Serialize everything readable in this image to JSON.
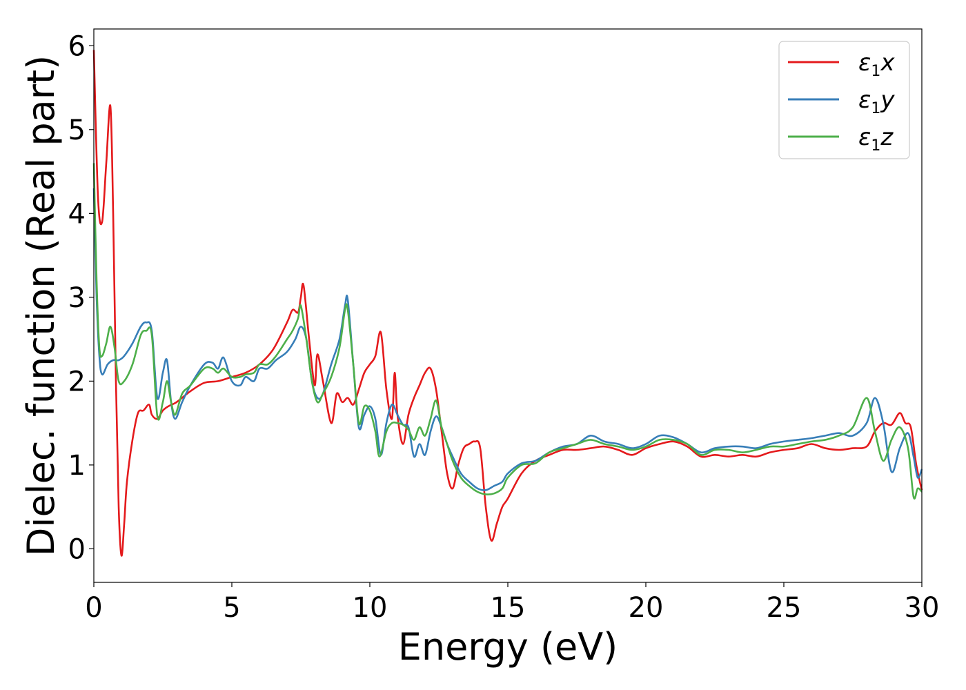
{
  "chart_data": {
    "type": "line",
    "xlabel": "Energy (eV)",
    "ylabel": "Dielec. function (Real part)",
    "xlim": [
      0,
      30
    ],
    "ylim": [
      -0.4,
      6.2
    ],
    "xticks": [
      0,
      5,
      10,
      15,
      20,
      25,
      30
    ],
    "yticks": [
      0,
      1,
      2,
      3,
      4,
      5,
      6
    ],
    "grid": false,
    "legend_position": "top-right",
    "series": [
      {
        "name": "x",
        "legend_symbol": "ε",
        "legend_subscript": "1",
        "color": "#e41a1c",
        "x": [
          0,
          0.15,
          0.3,
          0.45,
          0.6,
          0.7,
          0.8,
          0.9,
          1.0,
          1.1,
          1.2,
          1.4,
          1.6,
          1.8,
          2.0,
          2.1,
          2.3,
          2.5,
          2.7,
          3.0,
          3.5,
          4.0,
          4.5,
          5.0,
          5.5,
          6.0,
          6.5,
          7.0,
          7.2,
          7.4,
          7.5,
          7.6,
          7.8,
          8.0,
          8.1,
          8.3,
          8.6,
          8.8,
          9.0,
          9.2,
          9.4,
          9.6,
          9.8,
          10.0,
          10.2,
          10.4,
          10.6,
          10.8,
          10.9,
          11.0,
          11.2,
          11.4,
          11.6,
          11.8,
          12.0,
          12.2,
          12.4,
          12.6,
          12.8,
          13.0,
          13.2,
          13.4,
          13.6,
          13.8,
          14.0,
          14.2,
          14.4,
          14.6,
          14.8,
          15.0,
          15.5,
          16.0,
          16.5,
          17.0,
          17.5,
          18.0,
          18.5,
          19.0,
          19.5,
          20.0,
          20.5,
          21.0,
          21.5,
          22.0,
          22.5,
          23.0,
          23.5,
          24.0,
          24.5,
          25.0,
          25.5,
          26.0,
          26.5,
          27.0,
          27.5,
          28.0,
          28.3,
          28.6,
          28.9,
          29.2,
          29.4,
          29.6,
          29.8,
          30.0
        ],
        "y": [
          5.95,
          4.2,
          3.9,
          4.6,
          5.28,
          4.0,
          2.0,
          0.5,
          -0.08,
          0.3,
          0.8,
          1.3,
          1.62,
          1.65,
          1.72,
          1.6,
          1.55,
          1.65,
          1.7,
          1.75,
          1.88,
          1.98,
          2.0,
          2.05,
          2.1,
          2.2,
          2.38,
          2.7,
          2.85,
          2.82,
          3.0,
          3.14,
          2.5,
          1.95,
          2.32,
          2.0,
          1.5,
          1.85,
          1.75,
          1.8,
          1.72,
          1.9,
          2.1,
          2.2,
          2.3,
          2.58,
          1.9,
          1.55,
          2.1,
          1.6,
          1.25,
          1.6,
          1.8,
          1.95,
          2.1,
          2.15,
          1.9,
          1.4,
          0.9,
          0.72,
          1.0,
          1.2,
          1.25,
          1.28,
          1.2,
          0.5,
          0.1,
          0.3,
          0.5,
          0.6,
          0.9,
          1.05,
          1.12,
          1.18,
          1.18,
          1.2,
          1.22,
          1.18,
          1.12,
          1.2,
          1.25,
          1.28,
          1.22,
          1.1,
          1.12,
          1.1,
          1.12,
          1.1,
          1.15,
          1.18,
          1.2,
          1.25,
          1.2,
          1.18,
          1.2,
          1.22,
          1.4,
          1.5,
          1.48,
          1.62,
          1.5,
          1.45,
          1.0,
          0.7
        ]
      },
      {
        "name": "y",
        "legend_symbol": "ε",
        "legend_subscript": "1",
        "color": "#377eb8",
        "x": [
          0,
          0.1,
          0.2,
          0.3,
          0.5,
          0.7,
          0.9,
          1.1,
          1.4,
          1.7,
          1.9,
          2.1,
          2.3,
          2.5,
          2.65,
          2.8,
          2.95,
          3.2,
          3.5,
          4.0,
          4.3,
          4.5,
          4.7,
          5.0,
          5.3,
          5.5,
          5.8,
          6.0,
          6.3,
          6.6,
          7.0,
          7.3,
          7.5,
          7.7,
          7.9,
          8.1,
          8.3,
          8.6,
          8.9,
          9.1,
          9.2,
          9.4,
          9.6,
          9.8,
          10.0,
          10.2,
          10.4,
          10.6,
          10.8,
          11.0,
          11.2,
          11.4,
          11.6,
          11.8,
          12.0,
          12.2,
          12.4,
          12.6,
          12.8,
          13.0,
          13.3,
          13.6,
          13.9,
          14.2,
          14.5,
          14.8,
          15.0,
          15.5,
          16.0,
          16.5,
          17.0,
          17.5,
          18.0,
          18.5,
          19.0,
          19.5,
          20.0,
          20.5,
          21.0,
          21.5,
          22.0,
          22.5,
          23.0,
          23.5,
          24.0,
          24.5,
          25.0,
          25.5,
          26.0,
          26.5,
          27.0,
          27.5,
          28.0,
          28.3,
          28.6,
          28.9,
          29.2,
          29.5,
          29.7,
          29.85,
          30.0
        ],
        "y": [
          4.3,
          3.0,
          2.3,
          2.08,
          2.2,
          2.25,
          2.25,
          2.3,
          2.45,
          2.65,
          2.7,
          2.6,
          1.8,
          2.1,
          2.25,
          1.75,
          1.55,
          1.75,
          1.95,
          2.2,
          2.22,
          2.15,
          2.28,
          2.0,
          1.95,
          2.05,
          2.0,
          2.15,
          2.15,
          2.25,
          2.35,
          2.5,
          2.65,
          2.5,
          2.0,
          1.8,
          1.85,
          2.2,
          2.5,
          2.9,
          2.97,
          2.2,
          1.45,
          1.6,
          1.7,
          1.55,
          1.12,
          1.5,
          1.72,
          1.6,
          1.48,
          1.45,
          1.1,
          1.25,
          1.12,
          1.4,
          1.58,
          1.45,
          1.25,
          1.1,
          0.9,
          0.8,
          0.72,
          0.7,
          0.75,
          0.8,
          0.9,
          1.02,
          1.05,
          1.15,
          1.22,
          1.25,
          1.35,
          1.28,
          1.25,
          1.2,
          1.25,
          1.35,
          1.33,
          1.25,
          1.15,
          1.2,
          1.22,
          1.22,
          1.2,
          1.25,
          1.28,
          1.3,
          1.32,
          1.35,
          1.38,
          1.35,
          1.5,
          1.8,
          1.5,
          0.92,
          1.2,
          1.38,
          1.1,
          0.85,
          0.95
        ]
      },
      {
        "name": "z",
        "legend_symbol": "ε",
        "legend_subscript": "1",
        "color": "#4daf4a",
        "x": [
          0,
          0.1,
          0.2,
          0.3,
          0.45,
          0.6,
          0.75,
          0.9,
          1.1,
          1.4,
          1.7,
          1.9,
          2.1,
          2.3,
          2.5,
          2.65,
          2.8,
          2.95,
          3.2,
          3.5,
          4.0,
          4.3,
          4.5,
          4.7,
          5.0,
          5.3,
          5.5,
          5.8,
          6.0,
          6.3,
          6.6,
          7.0,
          7.2,
          7.4,
          7.5,
          7.7,
          7.9,
          8.1,
          8.3,
          8.6,
          8.9,
          9.1,
          9.2,
          9.4,
          9.6,
          9.8,
          10.0,
          10.2,
          10.35,
          10.6,
          10.8,
          11.0,
          11.2,
          11.4,
          11.6,
          11.8,
          12.0,
          12.2,
          12.4,
          12.6,
          12.8,
          13.0,
          13.3,
          13.6,
          13.9,
          14.2,
          14.5,
          14.8,
          15.0,
          15.5,
          16.0,
          16.5,
          17.0,
          17.5,
          18.0,
          18.5,
          19.0,
          19.5,
          20.0,
          20.5,
          21.0,
          21.5,
          22.0,
          22.5,
          23.0,
          23.5,
          24.0,
          24.5,
          25.0,
          25.5,
          26.0,
          26.5,
          27.0,
          27.5,
          28.0,
          28.3,
          28.6,
          28.9,
          29.2,
          29.5,
          29.7,
          29.85,
          30.0
        ],
        "y": [
          4.6,
          3.2,
          2.4,
          2.3,
          2.45,
          2.65,
          2.4,
          2.0,
          2.0,
          2.2,
          2.55,
          2.6,
          2.55,
          1.58,
          1.75,
          2.0,
          1.75,
          1.6,
          1.85,
          1.95,
          2.15,
          2.15,
          2.1,
          2.15,
          2.05,
          2.05,
          2.08,
          2.1,
          2.2,
          2.2,
          2.3,
          2.5,
          2.6,
          2.75,
          2.9,
          2.5,
          2.0,
          1.75,
          1.85,
          2.05,
          2.4,
          2.85,
          2.85,
          2.2,
          1.5,
          1.7,
          1.65,
          1.4,
          1.1,
          1.4,
          1.5,
          1.5,
          1.48,
          1.42,
          1.3,
          1.45,
          1.35,
          1.55,
          1.77,
          1.45,
          1.25,
          1.05,
          0.85,
          0.75,
          0.68,
          0.65,
          0.66,
          0.72,
          0.85,
          1.0,
          1.02,
          1.15,
          1.2,
          1.25,
          1.3,
          1.25,
          1.22,
          1.18,
          1.22,
          1.3,
          1.3,
          1.25,
          1.12,
          1.18,
          1.18,
          1.15,
          1.18,
          1.22,
          1.22,
          1.25,
          1.28,
          1.3,
          1.35,
          1.45,
          1.8,
          1.4,
          1.05,
          1.3,
          1.45,
          1.2,
          0.62,
          0.72,
          0.68
        ]
      }
    ]
  }
}
